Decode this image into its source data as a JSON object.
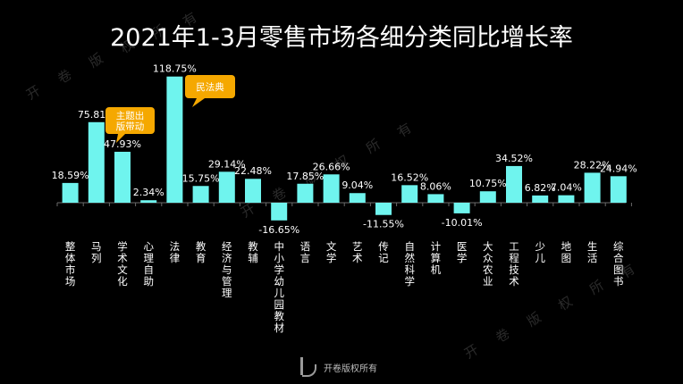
{
  "chart_data": {
    "type": "bar",
    "title": "2021年1-3月零售市场各细分类同比增长率",
    "categories": [
      "整体市场",
      "马列",
      "学术文化",
      "心理自助",
      "法律",
      "教育",
      "经济与管理",
      "教辅",
      "中小学幼儿园教材",
      "语言",
      "文学",
      "艺术",
      "传记",
      "自然科学",
      "计算机",
      "医学",
      "大众农业",
      "工程技术",
      "少儿",
      "地图",
      "生活",
      "综合图书"
    ],
    "values": [
      18.59,
      75.81,
      47.93,
      2.34,
      118.75,
      15.75,
      29.14,
      22.48,
      -16.65,
      17.85,
      26.66,
      9.04,
      -11.55,
      16.52,
      8.06,
      -10.01,
      10.75,
      34.52,
      6.82,
      7.04,
      28.22,
      24.94
    ],
    "labels": [
      "18.59%",
      "75.81%",
      "47.93%",
      "2.34%",
      "118.75%",
      "15.75%",
      "29.14%",
      "22.48%",
      "-16.65%",
      "17.85%",
      "26.66%",
      "9.04%",
      "-11.55%",
      "16.52%",
      "8.06%",
      "-10.01%",
      "10.75%",
      "34.52%",
      "6.82%",
      "7.04%",
      "28.22%",
      "24.94%"
    ],
    "bar_color": "#6ff4ee",
    "callout_color": "#f5a800",
    "annotations": [
      {
        "category_index": 2,
        "text": [
          "主题出",
          "版带动"
        ]
      },
      {
        "category_index": 4,
        "text": [
          "民法典"
        ]
      }
    ],
    "ylim": [
      -30,
      125
    ],
    "grid": false,
    "legend": "none"
  },
  "watermark": {
    "text": [
      "开",
      "卷",
      "版",
      "权",
      "所",
      "有"
    ]
  },
  "footer": {
    "text": "开卷版权所有"
  }
}
